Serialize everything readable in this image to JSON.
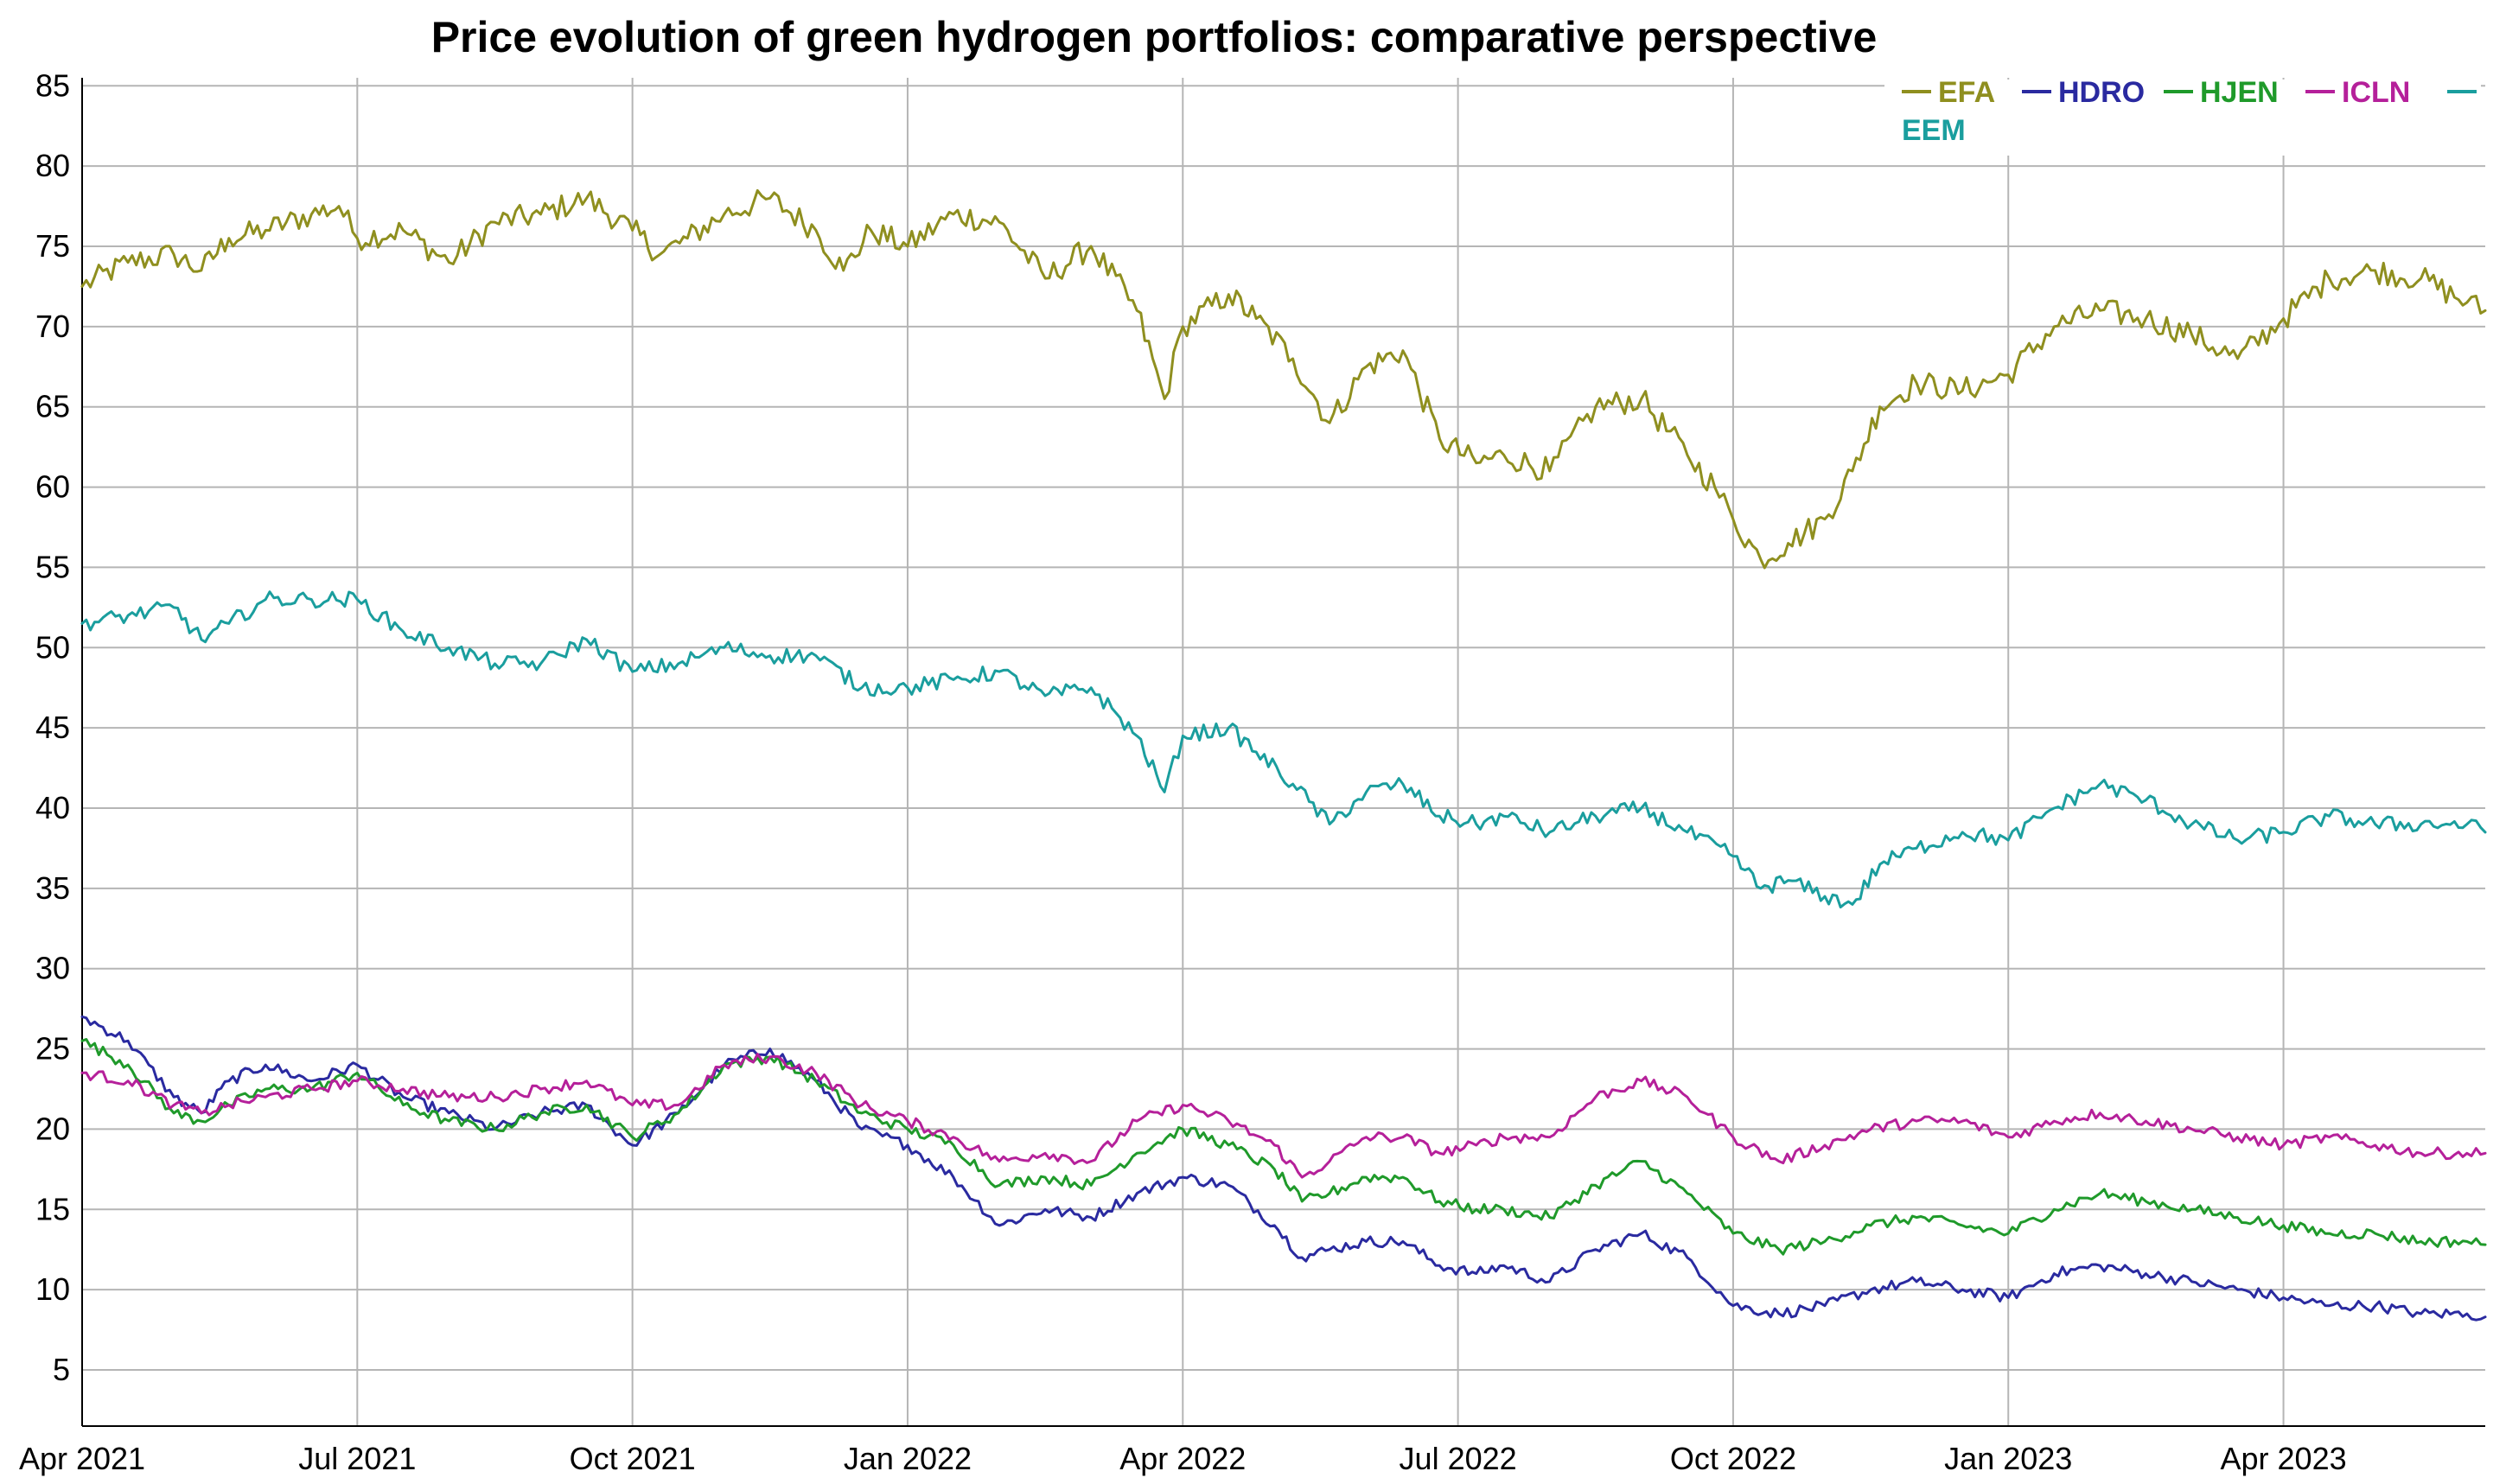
{
  "chart_data": {
    "type": "line",
    "title": "Price evolution of green hydrogen portfolios: comparative perspective",
    "xlabel": "",
    "ylabel": "",
    "ylim": [
      1.5,
      85.5
    ],
    "yticks": [
      5,
      10,
      15,
      20,
      25,
      30,
      35,
      40,
      45,
      50,
      55,
      60,
      65,
      70,
      75,
      80,
      85
    ],
    "xlim_months": [
      0,
      26.2
    ],
    "xticks": [
      {
        "label": "Apr 2021",
        "month": 0
      },
      {
        "label": "Jul 2021",
        "month": 3
      },
      {
        "label": "Oct 2021",
        "month": 6
      },
      {
        "label": "Jan 2022",
        "month": 9
      },
      {
        "label": "Apr 2022",
        "month": 12
      },
      {
        "label": "Jul 2022",
        "month": 15
      },
      {
        "label": "Oct 2022",
        "month": 18
      },
      {
        "label": "Jan 2023",
        "month": 21
      },
      {
        "label": "Apr 2023",
        "month": 24
      }
    ],
    "grid": true,
    "legend_position": "top-right",
    "x_unit": "months since Apr 2021",
    "series": [
      {
        "name": "EFA",
        "color": "#8f8f1f",
        "points": [
          [
            0,
            72.5
          ],
          [
            0.5,
            74
          ],
          [
            1,
            74.5
          ],
          [
            1.3,
            73.5
          ],
          [
            1.6,
            75.5
          ],
          [
            2,
            76
          ],
          [
            2.5,
            77
          ],
          [
            2.8,
            77.5
          ],
          [
            3,
            75.5
          ],
          [
            3.5,
            76
          ],
          [
            4,
            74
          ],
          [
            4.5,
            76.5
          ],
          [
            5,
            77
          ],
          [
            5.5,
            78
          ],
          [
            6,
            76
          ],
          [
            6.3,
            74.5
          ],
          [
            6.6,
            75.5
          ],
          [
            7,
            77
          ],
          [
            7.5,
            78
          ],
          [
            8,
            76
          ],
          [
            8.3,
            73.5
          ],
          [
            8.6,
            76
          ],
          [
            9,
            75
          ],
          [
            9.5,
            77
          ],
          [
            10,
            76.5
          ],
          [
            10.5,
            73
          ],
          [
            11,
            75
          ],
          [
            11.5,
            71
          ],
          [
            11.8,
            65.5
          ],
          [
            12,
            70
          ],
          [
            12.5,
            72
          ],
          [
            12.8,
            70.5
          ],
          [
            13.2,
            68
          ],
          [
            13.6,
            64
          ],
          [
            14,
            67.5
          ],
          [
            14.4,
            68.5
          ],
          [
            14.8,
            63
          ],
          [
            15.2,
            61.5
          ],
          [
            15.5,
            62
          ],
          [
            16,
            61
          ],
          [
            16.5,
            65
          ],
          [
            17,
            65.5
          ],
          [
            17.5,
            62
          ],
          [
            17.8,
            60
          ],
          [
            18,
            58
          ],
          [
            18.3,
            55.5
          ],
          [
            18.6,
            56.5
          ],
          [
            19,
            58
          ],
          [
            19.3,
            61
          ],
          [
            19.6,
            65
          ],
          [
            20,
            66.5
          ],
          [
            20.5,
            66
          ],
          [
            21,
            67
          ],
          [
            21.5,
            70
          ],
          [
            22,
            71
          ],
          [
            22.5,
            70.5
          ],
          [
            23,
            69.5
          ],
          [
            23.5,
            68
          ],
          [
            24,
            70.5
          ],
          [
            24.5,
            73
          ],
          [
            25,
            73.5
          ],
          [
            25.5,
            73
          ],
          [
            26,
            71.5
          ],
          [
            26.2,
            71
          ]
        ]
      },
      {
        "name": "HDRO",
        "color": "#2a2aa0",
        "points": [
          [
            0,
            27
          ],
          [
            0.5,
            25.5
          ],
          [
            1,
            22
          ],
          [
            1.3,
            21
          ],
          [
            1.6,
            23
          ],
          [
            2,
            24
          ],
          [
            2.5,
            23
          ],
          [
            3,
            24
          ],
          [
            3.5,
            22
          ],
          [
            4,
            21
          ],
          [
            4.5,
            20
          ],
          [
            5,
            21
          ],
          [
            5.5,
            21.5
          ],
          [
            6,
            19
          ],
          [
            6.5,
            21
          ],
          [
            7,
            24
          ],
          [
            7.5,
            25
          ],
          [
            8,
            23
          ],
          [
            8.5,
            20
          ],
          [
            9,
            19
          ],
          [
            9.5,
            17
          ],
          [
            10,
            14
          ],
          [
            10.5,
            15
          ],
          [
            11,
            14.5
          ],
          [
            11.5,
            16
          ],
          [
            12,
            17
          ],
          [
            12.5,
            16.5
          ],
          [
            13,
            14
          ],
          [
            13.3,
            12
          ],
          [
            13.6,
            12.5
          ],
          [
            14,
            13
          ],
          [
            14.4,
            13
          ],
          [
            14.8,
            11.5
          ],
          [
            15.2,
            11
          ],
          [
            15.5,
            11.5
          ],
          [
            16,
            10.5
          ],
          [
            16.5,
            12.5
          ],
          [
            17,
            13.5
          ],
          [
            17.5,
            12
          ],
          [
            18,
            9
          ],
          [
            18.5,
            8.5
          ],
          [
            19,
            9
          ],
          [
            19.5,
            10
          ],
          [
            20,
            10.5
          ],
          [
            20.5,
            10
          ],
          [
            21,
            9.5
          ],
          [
            21.5,
            11
          ],
          [
            22,
            11.5
          ],
          [
            22.5,
            11
          ],
          [
            23,
            10.5
          ],
          [
            23.5,
            10
          ],
          [
            24,
            9.5
          ],
          [
            24.5,
            9
          ],
          [
            25,
            9
          ],
          [
            25.5,
            8.5
          ],
          [
            26,
            8.5
          ],
          [
            26.2,
            8.3
          ]
        ]
      },
      {
        "name": "HJEN",
        "color": "#1f9a2a",
        "points": [
          [
            0,
            25.5
          ],
          [
            0.5,
            24
          ],
          [
            1,
            21
          ],
          [
            1.3,
            20.5
          ],
          [
            1.6,
            21.5
          ],
          [
            2,
            22.5
          ],
          [
            2.5,
            22.5
          ],
          [
            3,
            23.5
          ],
          [
            3.5,
            21.5
          ],
          [
            4,
            20.5
          ],
          [
            4.5,
            20
          ],
          [
            5,
            21
          ],
          [
            5.5,
            21.5
          ],
          [
            6,
            19.5
          ],
          [
            6.5,
            21
          ],
          [
            7,
            24
          ],
          [
            7.5,
            24.5
          ],
          [
            8,
            23
          ],
          [
            8.5,
            21
          ],
          [
            9,
            20
          ],
          [
            9.5,
            19
          ],
          [
            10,
            16.5
          ],
          [
            10.5,
            17
          ],
          [
            11,
            16.5
          ],
          [
            11.5,
            18.5
          ],
          [
            12,
            20
          ],
          [
            12.5,
            19
          ],
          [
            13,
            17.5
          ],
          [
            13.3,
            15.5
          ],
          [
            13.6,
            16
          ],
          [
            14,
            17
          ],
          [
            14.4,
            17
          ],
          [
            14.8,
            15.5
          ],
          [
            15.2,
            15
          ],
          [
            15.5,
            15
          ],
          [
            16,
            14.5
          ],
          [
            16.5,
            16.5
          ],
          [
            17,
            18
          ],
          [
            17.5,
            16
          ],
          [
            18,
            13.5
          ],
          [
            18.5,
            12.5
          ],
          [
            19,
            13
          ],
          [
            19.5,
            14
          ],
          [
            20,
            14.5
          ],
          [
            20.5,
            14
          ],
          [
            21,
            13.5
          ],
          [
            21.5,
            15
          ],
          [
            22,
            16
          ],
          [
            22.5,
            15.5
          ],
          [
            23,
            15
          ],
          [
            23.5,
            14.5
          ],
          [
            24,
            14
          ],
          [
            24.5,
            13.5
          ],
          [
            25,
            13.5
          ],
          [
            25.5,
            13
          ],
          [
            26,
            13
          ],
          [
            26.2,
            12.8
          ]
        ]
      },
      {
        "name": "ICLN",
        "color": "#b5209a",
        "points": [
          [
            0,
            23.5
          ],
          [
            0.5,
            23
          ],
          [
            1,
            21.5
          ],
          [
            1.3,
            21
          ],
          [
            1.6,
            21.5
          ],
          [
            2,
            22
          ],
          [
            2.5,
            22.5
          ],
          [
            3,
            23
          ],
          [
            3.5,
            22.5
          ],
          [
            4,
            22
          ],
          [
            4.5,
            22
          ],
          [
            5,
            22.5
          ],
          [
            5.5,
            23
          ],
          [
            6,
            21.5
          ],
          [
            6.5,
            21.5
          ],
          [
            7,
            24
          ],
          [
            7.5,
            24.5
          ],
          [
            8,
            23.5
          ],
          [
            8.5,
            21.5
          ],
          [
            9,
            20.5
          ],
          [
            9.5,
            19.5
          ],
          [
            10,
            18
          ],
          [
            10.5,
            18.5
          ],
          [
            11,
            18
          ],
          [
            11.5,
            20.5
          ],
          [
            12,
            21.5
          ],
          [
            12.5,
            20.5
          ],
          [
            13,
            19
          ],
          [
            13.3,
            17
          ],
          [
            13.6,
            18
          ],
          [
            14,
            19.5
          ],
          [
            14.4,
            19.5
          ],
          [
            14.8,
            18.5
          ],
          [
            15.2,
            19
          ],
          [
            15.5,
            19.5
          ],
          [
            16,
            19.5
          ],
          [
            16.5,
            22
          ],
          [
            17,
            23
          ],
          [
            17.5,
            22
          ],
          [
            18,
            19.5
          ],
          [
            18.5,
            18
          ],
          [
            19,
            19
          ],
          [
            19.5,
            20
          ],
          [
            20,
            20.5
          ],
          [
            20.5,
            20.5
          ],
          [
            21,
            19.5
          ],
          [
            21.5,
            20.5
          ],
          [
            22,
            21
          ],
          [
            22.5,
            20.5
          ],
          [
            23,
            20
          ],
          [
            23.5,
            19.5
          ],
          [
            24,
            19
          ],
          [
            24.5,
            19.5
          ],
          [
            25,
            19
          ],
          [
            25.5,
            18.5
          ],
          [
            26,
            18.5
          ],
          [
            26.2,
            18.5
          ]
        ]
      },
      {
        "name": "EEM",
        "color": "#1a9e9e",
        "points": [
          [
            0,
            51.5
          ],
          [
            0.5,
            52
          ],
          [
            1,
            52.5
          ],
          [
            1.3,
            50.5
          ],
          [
            1.6,
            51.5
          ],
          [
            2,
            53
          ],
          [
            2.5,
            53
          ],
          [
            3,
            53
          ],
          [
            3.5,
            51
          ],
          [
            4,
            50
          ],
          [
            4.5,
            49
          ],
          [
            5,
            49
          ],
          [
            5.5,
            50.5
          ],
          [
            6,
            48.5
          ],
          [
            6.5,
            49
          ],
          [
            7,
            50
          ],
          [
            7.5,
            49.5
          ],
          [
            8,
            49.5
          ],
          [
            8.5,
            47.5
          ],
          [
            9,
            47.5
          ],
          [
            9.5,
            48
          ],
          [
            10,
            48.5
          ],
          [
            10.5,
            47
          ],
          [
            11,
            47.5
          ],
          [
            11.5,
            44.5
          ],
          [
            11.8,
            41
          ],
          [
            12,
            44.5
          ],
          [
            12.5,
            45
          ],
          [
            12.8,
            43.5
          ],
          [
            13.2,
            41.5
          ],
          [
            13.6,
            39
          ],
          [
            14,
            41
          ],
          [
            14.4,
            41.5
          ],
          [
            14.8,
            39.5
          ],
          [
            15.2,
            39
          ],
          [
            15.5,
            39.5
          ],
          [
            16,
            38.5
          ],
          [
            16.5,
            39.5
          ],
          [
            17,
            40
          ],
          [
            17.5,
            38.5
          ],
          [
            18,
            37
          ],
          [
            18.3,
            35
          ],
          [
            18.6,
            35.5
          ],
          [
            19,
            34.5
          ],
          [
            19.3,
            34
          ],
          [
            19.6,
            36.5
          ],
          [
            20,
            37.5
          ],
          [
            20.5,
            38.5
          ],
          [
            21,
            38
          ],
          [
            21.5,
            40
          ],
          [
            22,
            41.5
          ],
          [
            22.5,
            40.5
          ],
          [
            23,
            39
          ],
          [
            23.5,
            38
          ],
          [
            24,
            38.5
          ],
          [
            24.5,
            39.5
          ],
          [
            25,
            39
          ],
          [
            25.5,
            39
          ],
          [
            26,
            39
          ],
          [
            26.2,
            38.5
          ]
        ]
      }
    ]
  }
}
